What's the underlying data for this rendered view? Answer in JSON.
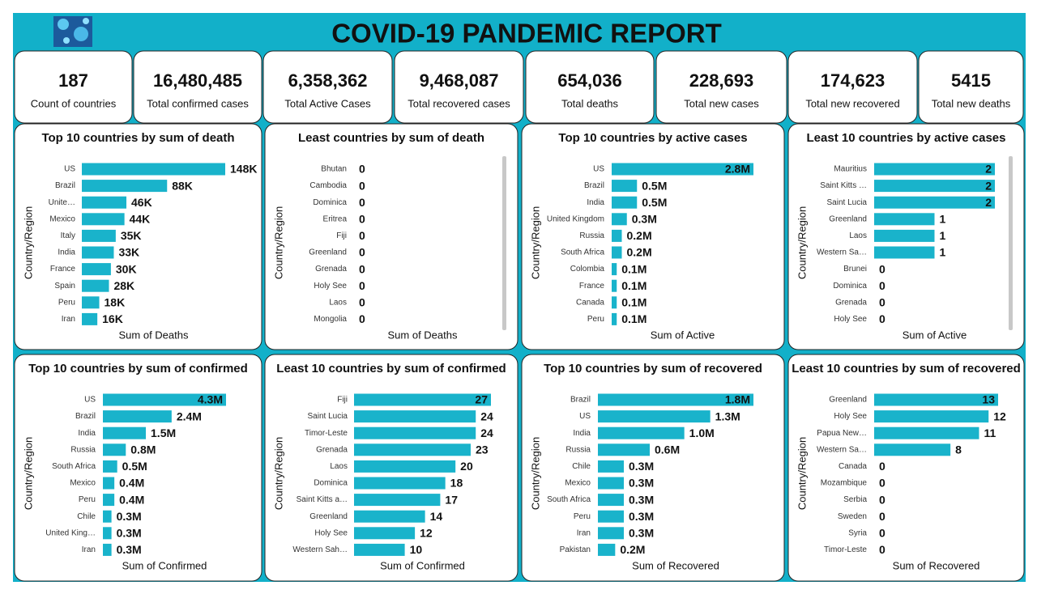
{
  "title": "COVID-19 PANDEMIC REPORT",
  "kpis": [
    {
      "value": "187",
      "label": "Count of countries"
    },
    {
      "value": "16,480,485",
      "label": "Total confirmed cases"
    },
    {
      "value": "6,358,362",
      "label": "Total Active Cases"
    },
    {
      "value": "9,468,087",
      "label": "Total recovered cases"
    },
    {
      "value": "654,036",
      "label": "Total deaths"
    },
    {
      "value": "228,693",
      "label": "Total new cases"
    },
    {
      "value": "174,623",
      "label": "Total new recovered"
    },
    {
      "value": "5415",
      "label": "Total new deaths"
    }
  ],
  "chart_data": [
    {
      "type": "bar",
      "title": "Top 10 countries by sum of death",
      "x_label": "Sum of Deaths",
      "y_label": "Country/Region",
      "color": "#19b3cb",
      "categories": [
        "US",
        "Brazil",
        "Unite…",
        "Mexico",
        "Italy",
        "India",
        "France",
        "Spain",
        "Peru",
        "Iran"
      ],
      "values": [
        148000,
        88000,
        46000,
        44000,
        35000,
        33000,
        30000,
        28000,
        18000,
        16000
      ],
      "value_labels": [
        "148K",
        "88K",
        "46K",
        "44K",
        "35K",
        "33K",
        "30K",
        "28K",
        "18K",
        "16K"
      ]
    },
    {
      "type": "bar",
      "title": "Least countries by sum of death",
      "x_label": "Sum of Deaths",
      "y_label": "Country/Region",
      "color": "#19b3cb",
      "categories": [
        "Bhutan",
        "Cambodia",
        "Dominica",
        "Eritrea",
        "Fiji",
        "Greenland",
        "Grenada",
        "Holy See",
        "Laos",
        "Mongolia"
      ],
      "values": [
        0,
        0,
        0,
        0,
        0,
        0,
        0,
        0,
        0,
        0
      ]
    },
    {
      "type": "bar",
      "title": "Top 10 countries by active cases",
      "x_label": "Sum of Active",
      "y_label": "Country/Region",
      "color": "#19b3cb",
      "categories": [
        "US",
        "Brazil",
        "India",
        "United Kingdom",
        "Russia",
        "South Africa",
        "Colombia",
        "France",
        "Canada",
        "Peru"
      ],
      "values": [
        2800000,
        500000,
        500000,
        300000,
        200000,
        200000,
        100000,
        100000,
        100000,
        100000
      ],
      "value_labels": [
        "2.8M",
        "0.5M",
        "0.5M",
        "0.3M",
        "0.2M",
        "0.2M",
        "0.1M",
        "0.1M",
        "0.1M",
        "0.1M"
      ]
    },
    {
      "type": "bar",
      "title": "Least 10 countries by active cases",
      "x_label": "Sum of Active",
      "y_label": "Country/Region",
      "color": "#19b3cb",
      "categories": [
        "Mauritius",
        "Saint Kitts …",
        "Saint Lucia",
        "Greenland",
        "Laos",
        "Western Sa…",
        "Brunei",
        "Dominica",
        "Grenada",
        "Holy See"
      ],
      "values": [
        2,
        2,
        2,
        1,
        1,
        1,
        0,
        0,
        0,
        0
      ]
    },
    {
      "type": "bar",
      "title": "Top 10 countries by sum of confirmed",
      "x_label": "Sum of Confirmed",
      "y_label": "Country/Region",
      "color": "#19b3cb",
      "categories": [
        "US",
        "Brazil",
        "India",
        "Russia",
        "South Africa",
        "Mexico",
        "Peru",
        "Chile",
        "United King…",
        "Iran"
      ],
      "values": [
        4300000,
        2400000,
        1500000,
        800000,
        500000,
        400000,
        400000,
        300000,
        300000,
        300000
      ],
      "value_labels": [
        "4.3M",
        "2.4M",
        "1.5M",
        "0.8M",
        "0.5M",
        "0.4M",
        "0.4M",
        "0.3M",
        "0.3M",
        "0.3M"
      ]
    },
    {
      "type": "bar",
      "title": "Least 10 countries by sum of confirmed",
      "x_label": "Sum of Confirmed",
      "y_label": "Country/Region",
      "color": "#19b3cb",
      "categories": [
        "Fiji",
        "Saint Lucia",
        "Timor-Leste",
        "Grenada",
        "Laos",
        "Dominica",
        "Saint Kitts a…",
        "Greenland",
        "Holy See",
        "Western Sah…"
      ],
      "values": [
        27,
        24,
        24,
        23,
        20,
        18,
        17,
        14,
        12,
        10
      ]
    },
    {
      "type": "bar",
      "title": "Top 10 countries by sum of recovered",
      "x_label": "Sum of Recovered",
      "y_label": "Country/Region",
      "color": "#19b3cb",
      "categories": [
        "Brazil",
        "US",
        "India",
        "Russia",
        "Chile",
        "Mexico",
        "South Africa",
        "Peru",
        "Iran",
        "Pakistan"
      ],
      "values": [
        1800000,
        1300000,
        1000000,
        600000,
        300000,
        300000,
        300000,
        300000,
        300000,
        200000
      ],
      "value_labels": [
        "1.8M",
        "1.3M",
        "1.0M",
        "0.6M",
        "0.3M",
        "0.3M",
        "0.3M",
        "0.3M",
        "0.3M",
        "0.2M"
      ]
    },
    {
      "type": "bar",
      "title": "Least 10 countries by sum of recovered",
      "x_label": "Sum of Recovered",
      "y_label": "Country/Region",
      "color": "#19b3cb",
      "categories": [
        "Greenland",
        "Holy See",
        "Papua New…",
        "Western Sa…",
        "Canada",
        "Mozambique",
        "Serbia",
        "Sweden",
        "Syria",
        "Timor-Leste"
      ],
      "values": [
        13,
        12,
        11,
        8,
        0,
        0,
        0,
        0,
        0,
        0
      ]
    }
  ]
}
